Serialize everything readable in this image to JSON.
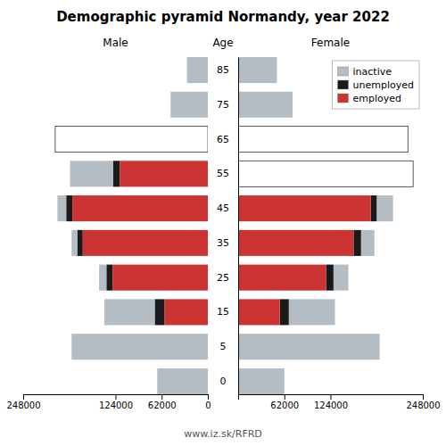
{
  "chart_data": [
    {
      "type": "bar",
      "orientation": "horizontal",
      "stacked": true,
      "title": "Demographic pyramid Normandy, year 2022",
      "xlabel": "Male",
      "categories": [
        0,
        5,
        15,
        25,
        35,
        45,
        55,
        65,
        75,
        85
      ],
      "series": [
        {
          "name": "inactive",
          "colors": [
            "#b4bcc4",
            "#b4bcc4",
            "#b4bcc4",
            "#b4bcc4",
            "#b4bcc4",
            "#b4bcc4",
            "#b4bcc4",
            "#ffffff",
            "#b4bcc4",
            "#b4bcc4"
          ],
          "values": [
            68000,
            183000,
            68000,
            10000,
            8000,
            12000,
            58000,
            205000,
            50000,
            28000
          ]
        },
        {
          "name": "unemployed",
          "color": "#1a1a1a",
          "values": [
            0,
            0,
            13000,
            8000,
            7000,
            8000,
            9000,
            0,
            0,
            0
          ]
        },
        {
          "name": "employed",
          "color": "#cc3333",
          "values": [
            0,
            0,
            58000,
            128000,
            168000,
            182000,
            118000,
            0,
            0,
            0
          ]
        }
      ],
      "xlim": [
        248000,
        0
      ],
      "xticks": [
        248000,
        124000,
        62000,
        0
      ],
      "tick_labels": "x",
      "annotations": [
        "www.iz.sk/RFRD"
      ]
    },
    {
      "type": "bar",
      "orientation": "horizontal",
      "stacked": true,
      "xlabel": "Female",
      "ylabel": "Age",
      "categories": [
        0,
        5,
        15,
        25,
        35,
        45,
        55,
        65,
        75,
        85
      ],
      "series": [
        {
          "name": "inactive",
          "color": "#b4bcc4",
          "colors": [
            "#b4bcc4",
            "#b4bcc4",
            "#b4bcc4",
            "#b4bcc4",
            "#b4bcc4",
            "#b4bcc4",
            "#ffffff",
            "#ffffff",
            "#b4bcc4",
            "#b4bcc4"
          ],
          "values": [
            62000,
            190000,
            62000,
            20000,
            18000,
            22000,
            235000,
            228000,
            73000,
            52000
          ]
        },
        {
          "name": "unemployed",
          "color": "#1a1a1a",
          "values": [
            0,
            0,
            12000,
            10000,
            10000,
            8000,
            0,
            0,
            0,
            0
          ]
        },
        {
          "name": "employed",
          "color": "#cc3333",
          "values": [
            0,
            0,
            56000,
            118000,
            155000,
            178000,
            0,
            0,
            0,
            0
          ]
        }
      ],
      "xlim": [
        0,
        248000
      ],
      "xticks": [
        62000,
        124000,
        248000
      ],
      "legend": "upper right"
    }
  ]
}
